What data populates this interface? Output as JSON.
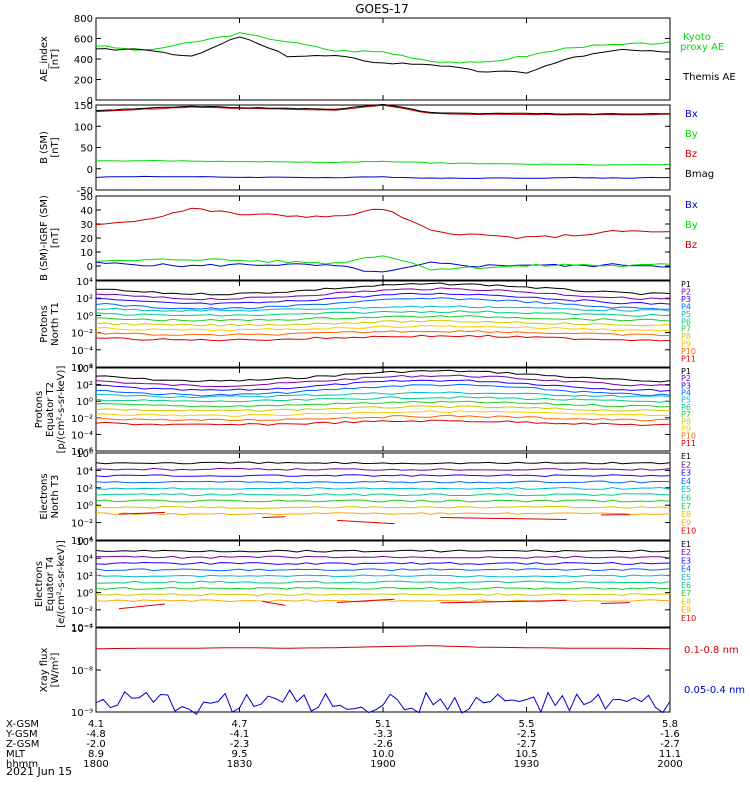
{
  "title": "GOES-17",
  "date_label": "2021 Jun 15",
  "colors": {
    "black": "#000000",
    "green": "#00dd00",
    "blue": "#0000cc",
    "red": "#cc0000",
    "p": [
      "#000000",
      "#7a00a0",
      "#2200ff",
      "#0066ff",
      "#00bbcc",
      "#00cc88",
      "#22cc22",
      "#cccc00",
      "#ffcc00",
      "#ff6600",
      "#dd0000"
    ],
    "e": [
      "#000000",
      "#7a00a0",
      "#2200ff",
      "#0066ff",
      "#00bbcc",
      "#00cc88",
      "#22cc22",
      "#cccc00",
      "#ffaa00",
      "#dd0000"
    ]
  },
  "orbit": {
    "row_labels": [
      "X-GSM",
      "Y-GSM",
      "Z-GSM",
      "MLT",
      "hhmm"
    ],
    "columns": [
      [
        "4.1",
        "-4.8",
        "-2.0",
        "8.9",
        "1800"
      ],
      [
        "4.7",
        "-4.1",
        "-2.3",
        "9.5",
        "1830"
      ],
      [
        "5.1",
        "-3.3",
        "-2.6",
        "10.0",
        "1900"
      ],
      [
        "5.5",
        "-2.5",
        "-2.7",
        "10.5",
        "1930"
      ],
      [
        "5.8",
        "-1.6",
        "-2.7",
        "11.1",
        "2000"
      ]
    ]
  },
  "chart_data": [
    {
      "type": "line",
      "ylabel": [
        "AE_index",
        "[nT]"
      ],
      "ylim": [
        0,
        800
      ],
      "yticks": [
        "0",
        "200",
        "400",
        "600",
        "800"
      ],
      "x": [
        1800,
        1810,
        1820,
        1830,
        1840,
        1850,
        1900,
        1910,
        1920,
        1930,
        1940,
        1950,
        2000
      ],
      "series": [
        {
          "name": "Kyoto proxy AE",
          "values": [
            530,
            480,
            560,
            650,
            570,
            480,
            470,
            380,
            360,
            430,
            520,
            540,
            560
          ]
        },
        {
          "name": "Themis AE",
          "values": [
            490,
            500,
            420,
            620,
            430,
            430,
            360,
            350,
            280,
            270,
            420,
            490,
            460
          ]
        }
      ],
      "legend": [
        "Kyoto",
        "proxy AE",
        "Themis AE"
      ]
    },
    {
      "type": "line",
      "ylabel": [
        "B (SM)",
        "[nT]"
      ],
      "ylim": [
        -50,
        150
      ],
      "yticks": [
        "-50",
        "0",
        "50",
        "100",
        "150"
      ],
      "x": [
        1800,
        1810,
        1820,
        1830,
        1840,
        1850,
        1900,
        1910,
        1920,
        1930,
        1940,
        1950,
        2000
      ],
      "series": [
        {
          "name": "Bx",
          "values": [
            -20,
            -18,
            -19,
            -20,
            -20,
            -21,
            -19,
            -22,
            -22,
            -22,
            -21,
            -22,
            -20
          ]
        },
        {
          "name": "By",
          "values": [
            18,
            19,
            18,
            17,
            16,
            15,
            17,
            14,
            12,
            11,
            10,
            9,
            10
          ]
        },
        {
          "name": "Bz",
          "values": [
            135,
            140,
            145,
            142,
            140,
            138,
            150,
            130,
            128,
            128,
            127,
            127,
            128
          ]
        },
        {
          "name": "Bmag",
          "values": [
            137,
            142,
            147,
            144,
            142,
            140,
            152,
            132,
            130,
            130,
            129,
            129,
            130
          ]
        }
      ],
      "legend": [
        "Bx",
        "By",
        "Bz",
        "Bmag"
      ]
    },
    {
      "type": "line",
      "ylabel": [
        "B (SM)-IGRF (SM)",
        "[nT]"
      ],
      "ylim": [
        -10,
        50
      ],
      "yticks": [
        "0",
        "10",
        "20",
        "30",
        "40",
        "50"
      ],
      "x": [
        1800,
        1810,
        1820,
        1830,
        1840,
        1850,
        1900,
        1910,
        1920,
        1930,
        1940,
        1950,
        2000
      ],
      "series": [
        {
          "name": "Bx",
          "values": [
            2,
            1,
            0,
            1,
            1,
            0,
            -5,
            2,
            0,
            1,
            0,
            1,
            0
          ]
        },
        {
          "name": "By",
          "values": [
            3,
            4,
            5,
            4,
            3,
            2,
            8,
            -2,
            -1,
            0,
            1,
            0,
            1
          ]
        },
        {
          "name": "Bz",
          "values": [
            30,
            33,
            41,
            37,
            36,
            35,
            41,
            25,
            22,
            20,
            22,
            25,
            24
          ]
        }
      ],
      "legend": [
        "Bx",
        "By",
        "Bz"
      ]
    },
    {
      "type": "line",
      "ylabel": [
        "Protons",
        "North T1"
      ],
      "yscale": "log",
      "ylim": [
        1e-06,
        10000.0
      ],
      "yticks": [
        "10⁴",
        "10²",
        "10⁰",
        "10⁻²",
        "10⁻⁴",
        "10⁻⁶"
      ],
      "legend": [
        "P1",
        "P2",
        "P3",
        "P4",
        "P5",
        "P6",
        "P7",
        "P8",
        "P9",
        "P10",
        "P11"
      ]
    },
    {
      "type": "line",
      "ylabel": [
        "Protons",
        "Equator T2",
        "[p/(cm²-s-sr-keV)]"
      ],
      "yscale": "log",
      "ylim": [
        1e-06,
        10000.0
      ],
      "yticks": [
        "10⁴",
        "10²",
        "10⁰",
        "10⁻²",
        "10⁻⁴",
        "10⁻⁶"
      ],
      "legend": [
        "P1",
        "P2",
        "P3",
        "P4",
        "P5",
        "P6",
        "P7",
        "P8",
        "P9",
        "P10",
        "P11"
      ]
    },
    {
      "type": "line",
      "ylabel": [
        "Electrons",
        "North T3"
      ],
      "yscale": "log",
      "ylim": [
        0.0001,
        1000000.0
      ],
      "yticks": [
        "10⁶",
        "10⁴",
        "10²",
        "10⁰",
        "10⁻²",
        "10⁻⁴"
      ],
      "legend": [
        "E1",
        "E2",
        "E3",
        "E4",
        "E5",
        "E6",
        "E7",
        "E8",
        "E9",
        "E10"
      ]
    },
    {
      "type": "line",
      "ylabel": [
        "Electrons",
        "Equator T4",
        "[e/(cm²-s-sr-keV)]"
      ],
      "yscale": "log",
      "ylim": [
        0.0001,
        1000000.0
      ],
      "yticks": [
        "10⁶",
        "10⁴",
        "10²",
        "10⁰",
        "10⁻²",
        "10⁻⁴"
      ],
      "legend": [
        "E1",
        "E2",
        "E3",
        "E4",
        "E5",
        "E6",
        "E7",
        "E8",
        "E9",
        "E10"
      ]
    },
    {
      "type": "line",
      "ylabel": [
        "Xray flux",
        "[W/m²]"
      ],
      "yscale": "log",
      "ylim": [
        1e-09,
        1e-07
      ],
      "yticks": [
        "10⁻⁷",
        "10⁻⁸",
        "10⁻⁹"
      ],
      "series": [
        {
          "name": "0.1-0.8 nm",
          "values": [
            3.2e-08,
            3.3e-08,
            3.3e-08,
            3.4e-08,
            3.3e-08,
            3.4e-08,
            3.6e-08,
            3.8e-08,
            3.5e-08,
            3.4e-08,
            3.3e-08,
            3.3e-08,
            3.2e-08
          ]
        },
        {
          "name": "0.05-0.4 nm",
          "values": [
            1.6e-09,
            1.8e-09,
            1.5e-09,
            1.7e-09,
            1.9e-09,
            1.6e-09,
            1.5e-09,
            1.7e-09,
            1.6e-09,
            1.8e-09,
            1.5e-09,
            1.6e-09,
            1.4e-09
          ]
        }
      ],
      "legend": [
        "0.1-0.8 nm",
        "0.05-0.4 nm"
      ]
    }
  ]
}
